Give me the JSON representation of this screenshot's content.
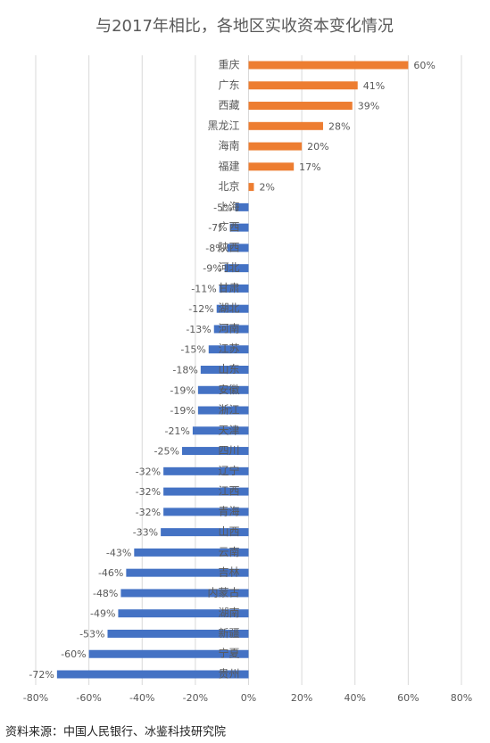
{
  "chart_data": {
    "type": "hbar",
    "title": "与2017年相比，各地区实收资本变化情况",
    "source": "资料来源：中国人民银行、冰鉴科技研究院",
    "categories": [
      "重庆",
      "广东",
      "西藏",
      "黑龙江",
      "海南",
      "福建",
      "北京",
      "上海",
      "广西",
      "陕西",
      "河北",
      "甘肃",
      "湖北",
      "河南",
      "江苏",
      "山东",
      "安徽",
      "浙江",
      "天津",
      "四川",
      "辽宁",
      "江西",
      "青海",
      "山西",
      "云南",
      "吉林",
      "内蒙古",
      "湖南",
      "新疆",
      "宁夏",
      "贵州"
    ],
    "values": [
      60,
      41,
      39,
      28,
      20,
      17,
      2,
      -5,
      -7,
      -8,
      -9,
      -11,
      -12,
      -13,
      -15,
      -18,
      -19,
      -19,
      -21,
      -25,
      -32,
      -32,
      -32,
      -33,
      -43,
      -46,
      -48,
      -49,
      -53,
      -60,
      -72
    ],
    "value_labels": [
      "60%",
      "41%",
      "39%",
      "28%",
      "20%",
      "17%",
      "2%",
      "-5%",
      "-7%",
      "-8%",
      "-9%",
      "-11%",
      "-12%",
      "-13%",
      "-15%",
      "-18%",
      "-19%",
      "-19%",
      "-21%",
      "-25%",
      "-32%",
      "-32%",
      "-32%",
      "-33%",
      "-43%",
      "-46%",
      "-48%",
      "-49%",
      "-53%",
      "-60%",
      "-72%"
    ],
    "positive_color": "#ed7d31",
    "negative_color": "#4472c4",
    "xlim": [
      -80,
      80
    ],
    "xticks": [
      {
        "value": -80,
        "label": "-80%"
      },
      {
        "value": -60,
        "label": "-60%"
      },
      {
        "value": -40,
        "label": "-40%"
      },
      {
        "value": -20,
        "label": "-20%"
      },
      {
        "value": 0,
        "label": "0%"
      },
      {
        "value": 20,
        "label": "20%"
      },
      {
        "value": 40,
        "label": "40%"
      },
      {
        "value": 60,
        "label": "60%"
      },
      {
        "value": 80,
        "label": "80%"
      }
    ],
    "grid": true
  }
}
